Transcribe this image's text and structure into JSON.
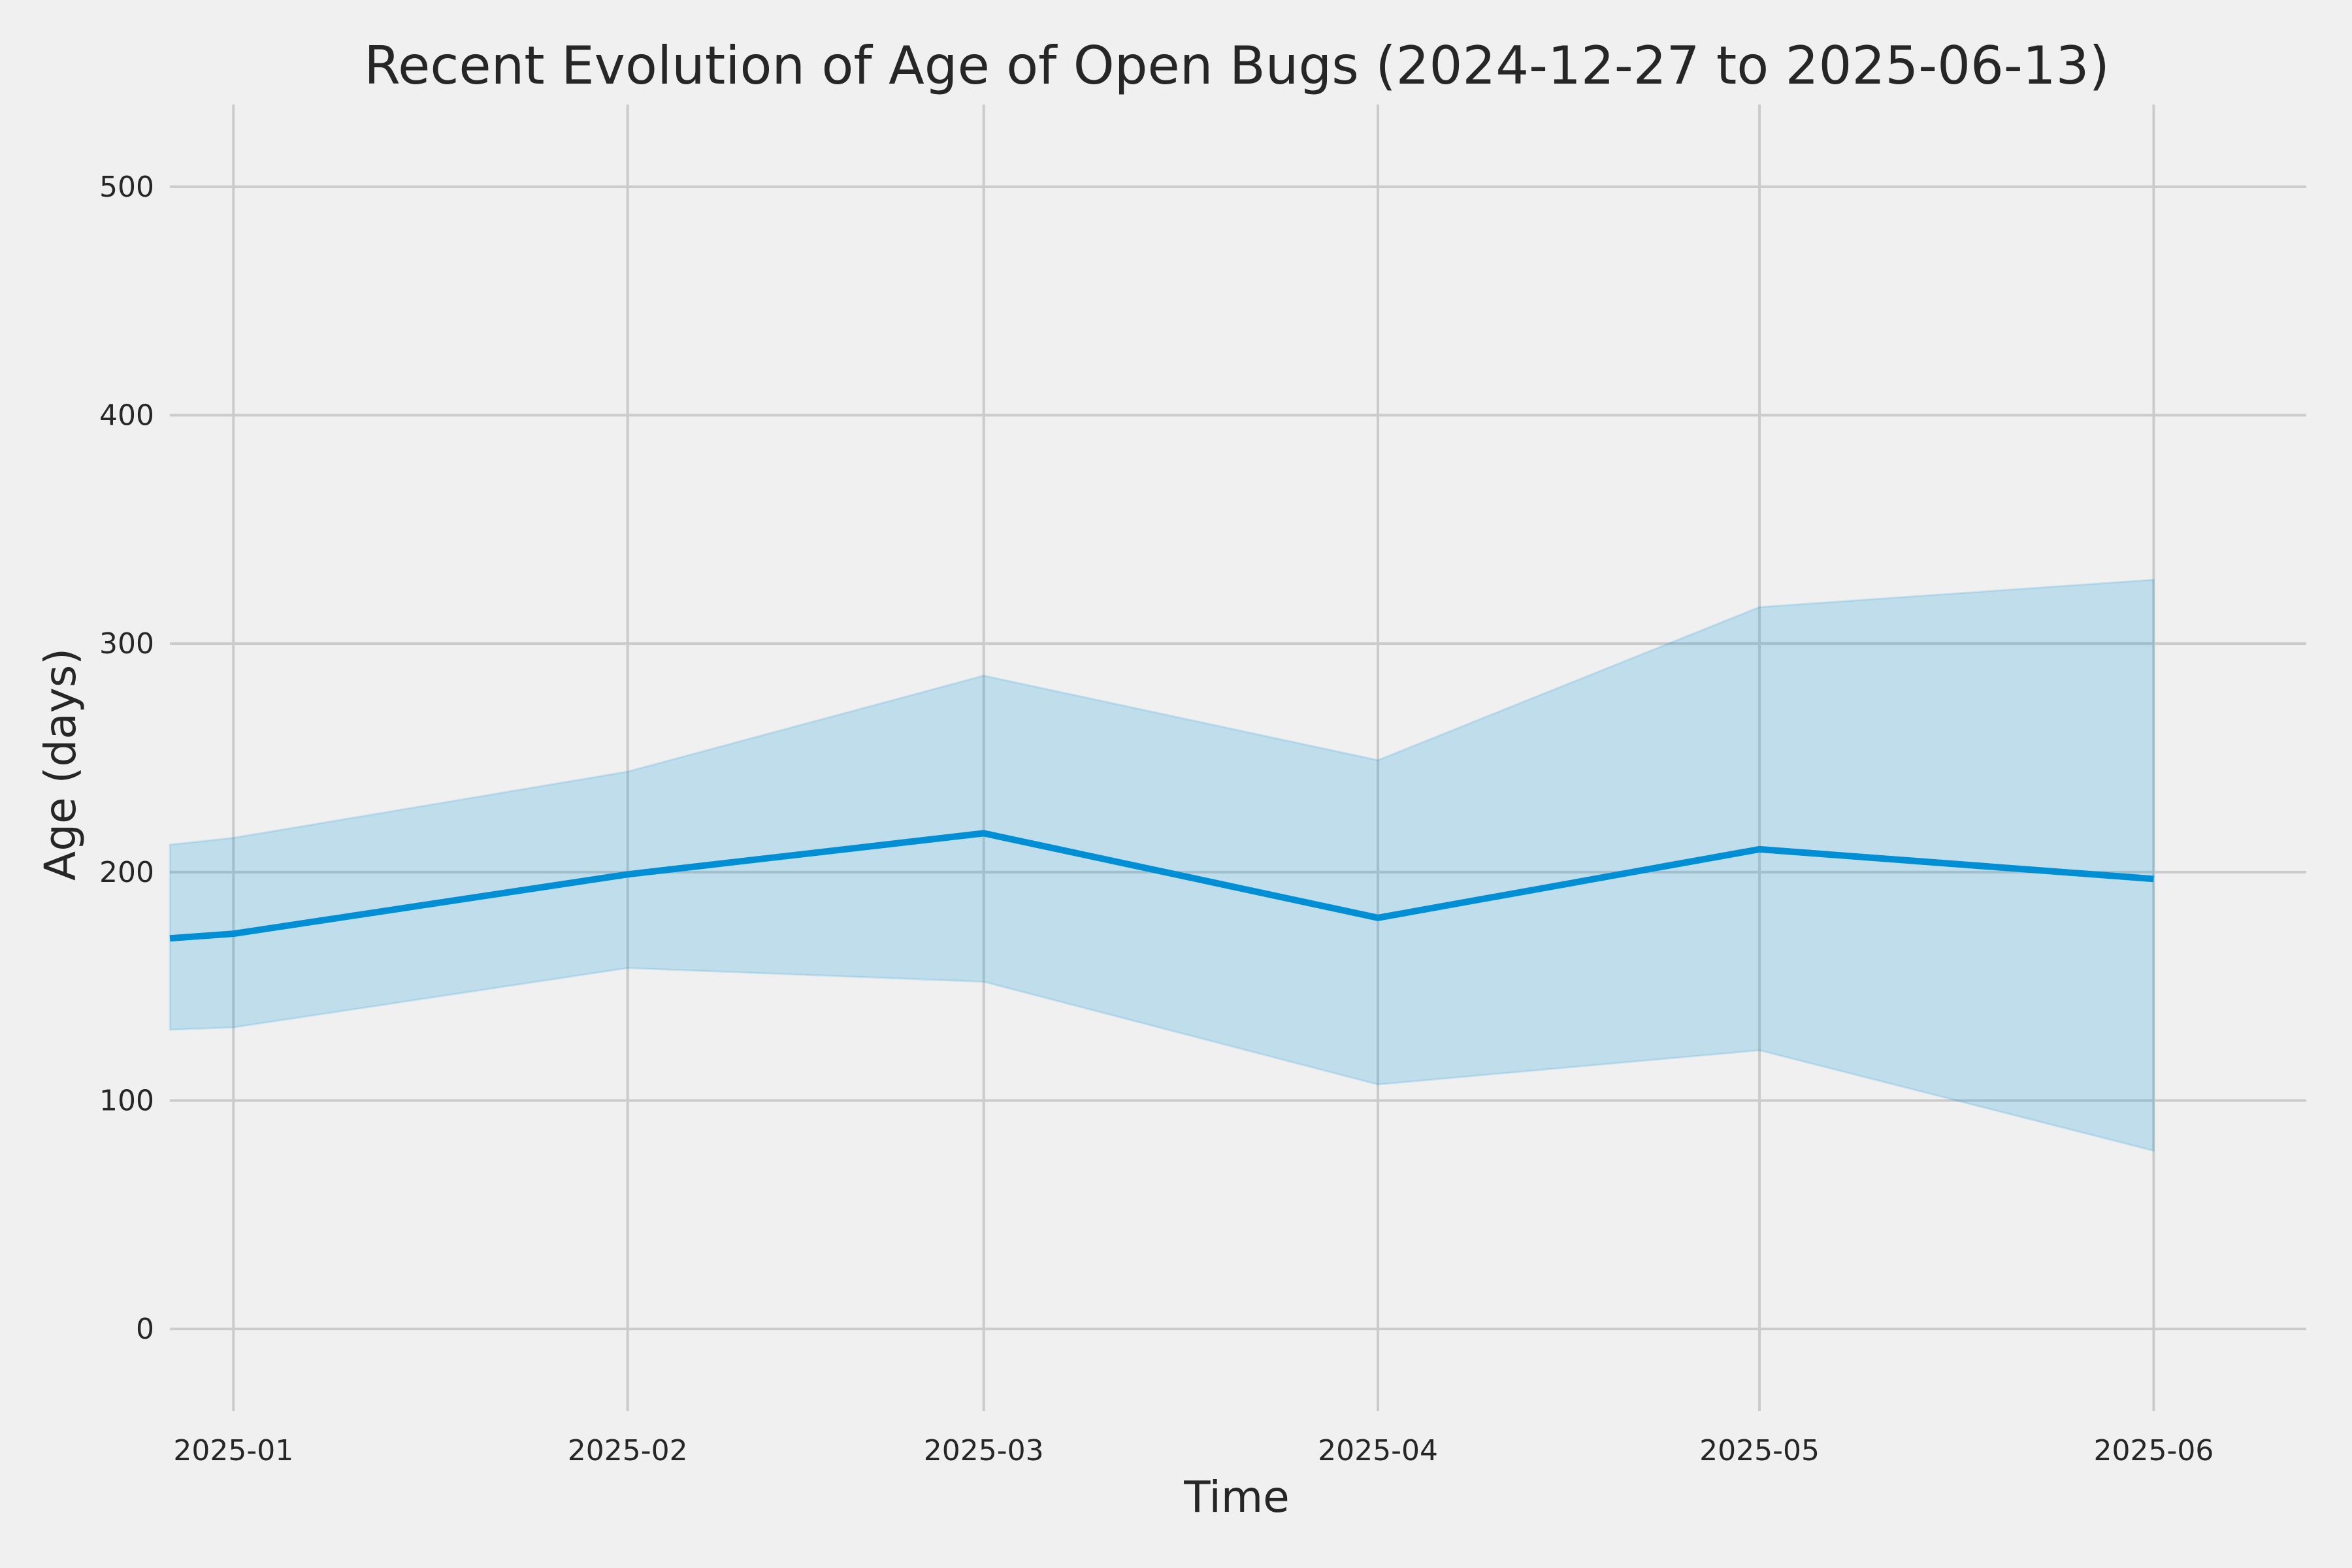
{
  "chart_data": {
    "type": "line",
    "title": "Recent Evolution of Age of Open Bugs (2024-12-27 to 2025-06-13)",
    "xlabel": "Time",
    "ylabel": "Age (days)",
    "x": [
      "2024-12-27",
      "2025-01-01",
      "2025-02-01",
      "2025-03-01",
      "2025-04-01",
      "2025-05-01",
      "2025-06-01"
    ],
    "series": [
      {
        "values": [
          171,
          173,
          199,
          217,
          180,
          210,
          197
        ],
        "upper": [
          212,
          215,
          244,
          286,
          249,
          316,
          328
        ],
        "lower": [
          131,
          132,
          158,
          152,
          107,
          122,
          78
        ]
      }
    ],
    "xlim": [
      "2024-12-27",
      "2025-06-13"
    ],
    "ylim": [
      -36,
      536
    ],
    "x_ticks": [
      "2025-01-01",
      "2025-02-01",
      "2025-03-01",
      "2025-04-01",
      "2025-05-01",
      "2025-06-01"
    ],
    "x_tick_labels": [
      "2025-01",
      "2025-02",
      "2025-03",
      "2025-04",
      "2025-05",
      "2025-06"
    ],
    "y_ticks": [
      0,
      100,
      200,
      300,
      400,
      500
    ],
    "y_tick_labels": [
      "0",
      "100",
      "200",
      "300",
      "400",
      "500"
    ],
    "grid": true,
    "line_color": "#008fd5",
    "band_color": "#008fd5"
  }
}
